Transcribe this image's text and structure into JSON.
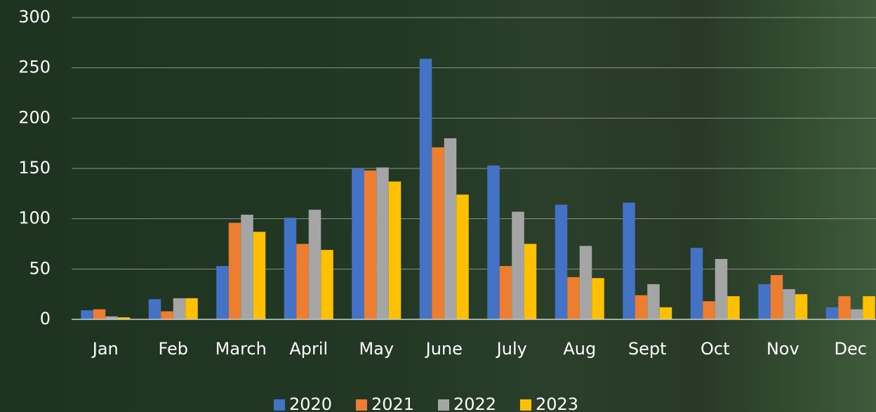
{
  "chart_data": {
    "type": "bar",
    "categories": [
      "Jan",
      "Feb",
      "March",
      "April",
      "May",
      "June",
      "July",
      "Aug",
      "Sept",
      "Oct",
      "Nov",
      "Dec"
    ],
    "series": [
      {
        "name": "2020",
        "color": "#4472c4",
        "values": [
          9,
          20,
          53,
          101,
          150,
          259,
          153,
          114,
          116,
          71,
          35,
          12
        ]
      },
      {
        "name": "2021",
        "color": "#ed7d31",
        "values": [
          10,
          8,
          96,
          75,
          148,
          171,
          53,
          42,
          24,
          18,
          44,
          23
        ]
      },
      {
        "name": "2022",
        "color": "#a5a5a5",
        "values": [
          3,
          21,
          104,
          109,
          151,
          180,
          107,
          73,
          35,
          60,
          30,
          10
        ]
      },
      {
        "name": "2023",
        "color": "#ffc000",
        "values": [
          2,
          21,
          87,
          69,
          137,
          124,
          75,
          41,
          12,
          23,
          25,
          23
        ]
      }
    ],
    "ylim": [
      0,
      300
    ],
    "yticks": [
      0,
      50,
      100,
      150,
      200,
      250,
      300
    ],
    "grid": true,
    "legend": "bottom"
  }
}
